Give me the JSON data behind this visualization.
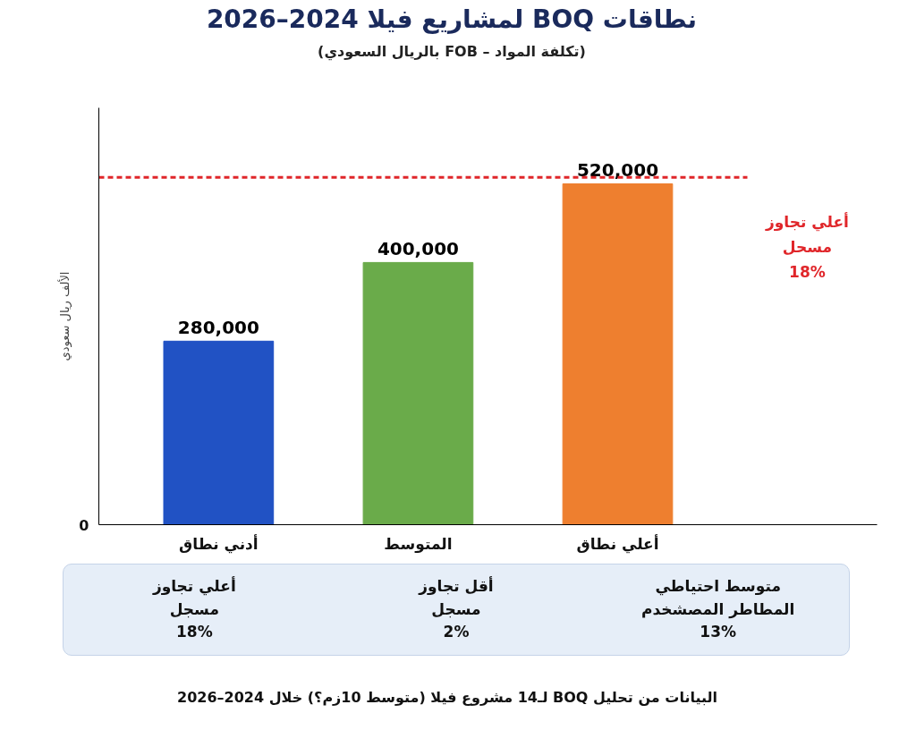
{
  "chart_data": {
    "type": "bar",
    "title": "نطاقات BOQ لمشاريع فيلا 2024–2026",
    "subtitle": "(تكلفة المواد – FOB بالريال السعودي)",
    "ylabel": "الألف ريال سعودي",
    "categories": [
      "أدني نطاق",
      "المتوسط",
      "أعلي نطاق"
    ],
    "values": [
      280000,
      400000,
      520000
    ],
    "value_labels": [
      "280,000",
      "400,000",
      "520,000"
    ],
    "colors": [
      "#2152c4",
      "#6aab4a",
      "#ee7f2f"
    ],
    "ref_lines": [
      {
        "axis": "y",
        "value": 530000,
        "label": "أعلي تجاوز\nمسحل\n18%",
        "color": "#e0262a",
        "line_style": "dashed"
      }
    ],
    "grid": false,
    "annotations": [
      "متوسط احتياطي\nالمطاطر المصشخدم\n13%",
      "أقل تجاوز\nمسجل\n2%",
      "أعلي تجاوز\nمسجل\n18%",
      "البيانات من تحليل BOQ لـ14 مشروع فيلا (متوسط 10زم؟) خلال 2024–2026",
      "0"
    ]
  }
}
